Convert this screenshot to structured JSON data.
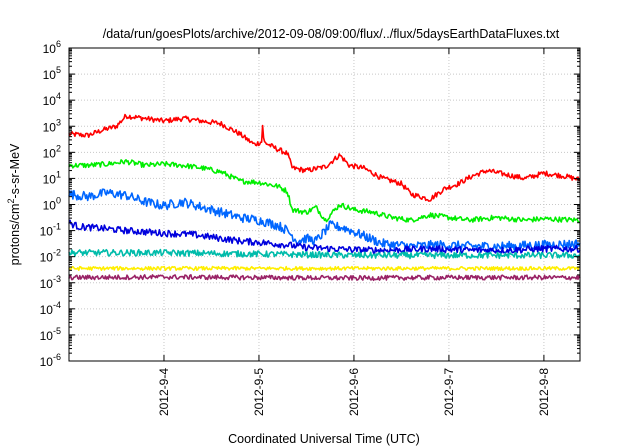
{
  "chart_data": {
    "type": "line",
    "title": "/data/run/goesPlots/archive/2012-09-08/09:00/flux/../flux/5daysEarthDataFluxes.txt",
    "xlabel": "Coordinated Universal Time (UTC)",
    "ylabel_prefix": "protons/cm",
    "ylabel_sup": "2",
    "ylabel_suffix": "-s-sr-MeV",
    "yscale": "log",
    "ylim_exp": [
      -6,
      6
    ],
    "y_ticks": [
      {
        "base": "10",
        "exp": "-6",
        "value": -6
      },
      {
        "base": "10",
        "exp": "-5",
        "value": -5
      },
      {
        "base": "10",
        "exp": "-4",
        "value": -4
      },
      {
        "base": "10",
        "exp": "-3",
        "value": -3
      },
      {
        "base": "10",
        "exp": "-2",
        "value": -2
      },
      {
        "base": "10",
        "exp": "-1",
        "value": -1
      },
      {
        "base": "10",
        "exp": "0",
        "value": 0
      },
      {
        "base": "10",
        "exp": "1",
        "value": 1
      },
      {
        "base": "10",
        "exp": "2",
        "value": 2
      },
      {
        "base": "10",
        "exp": "3",
        "value": 3
      },
      {
        "base": "10",
        "exp": "4",
        "value": 4
      },
      {
        "base": "10",
        "exp": "5",
        "value": 5
      },
      {
        "base": "10",
        "exp": "6",
        "value": 6
      }
    ],
    "xlim_days": [
      3.0,
      8.38
    ],
    "x_ticks": [
      {
        "label": "2012-9-4",
        "day": 4
      },
      {
        "label": "2012-9-5",
        "day": 5
      },
      {
        "label": "2012-9-6",
        "day": 6
      },
      {
        "label": "2012-9-7",
        "day": 7
      },
      {
        "label": "2012-9-8",
        "day": 8
      }
    ],
    "grid": true,
    "legend": "none",
    "series": [
      {
        "color": "#ff0000",
        "noise": 0.1,
        "points": [
          [
            3.0,
            2.7
          ],
          [
            3.2,
            2.65
          ],
          [
            3.35,
            2.85
          ],
          [
            3.5,
            3.0
          ],
          [
            3.6,
            3.4
          ],
          [
            3.8,
            3.3
          ],
          [
            4.0,
            3.2
          ],
          [
            4.2,
            3.3
          ],
          [
            4.4,
            3.2
          ],
          [
            4.6,
            3.1
          ],
          [
            4.8,
            2.7
          ],
          [
            4.95,
            2.3
          ],
          [
            5.03,
            2.4
          ],
          [
            5.04,
            3.2
          ],
          [
            5.05,
            2.4
          ],
          [
            5.15,
            2.2
          ],
          [
            5.3,
            1.95
          ],
          [
            5.35,
            1.4
          ],
          [
            5.5,
            1.3
          ],
          [
            5.7,
            1.45
          ],
          [
            5.85,
            1.9
          ],
          [
            5.95,
            1.5
          ],
          [
            6.1,
            1.4
          ],
          [
            6.3,
            1.0
          ],
          [
            6.5,
            0.8
          ],
          [
            6.6,
            0.4
          ],
          [
            6.8,
            0.2
          ],
          [
            6.95,
            0.6
          ],
          [
            7.1,
            0.8
          ],
          [
            7.25,
            1.1
          ],
          [
            7.4,
            1.3
          ],
          [
            7.6,
            1.15
          ],
          [
            7.8,
            1.0
          ],
          [
            8.0,
            1.2
          ],
          [
            8.2,
            1.1
          ],
          [
            8.38,
            0.95
          ]
        ]
      },
      {
        "color": "#00ee00",
        "noise": 0.1,
        "points": [
          [
            3.0,
            1.5
          ],
          [
            3.2,
            1.5
          ],
          [
            3.4,
            1.55
          ],
          [
            3.6,
            1.65
          ],
          [
            3.8,
            1.5
          ],
          [
            4.0,
            1.55
          ],
          [
            4.2,
            1.5
          ],
          [
            4.4,
            1.4
          ],
          [
            4.6,
            1.25
          ],
          [
            4.8,
            0.9
          ],
          [
            5.0,
            0.85
          ],
          [
            5.2,
            0.7
          ],
          [
            5.3,
            0.5
          ],
          [
            5.35,
            -0.2
          ],
          [
            5.5,
            -0.3
          ],
          [
            5.6,
            -0.1
          ],
          [
            5.7,
            -0.6
          ],
          [
            5.85,
            0.0
          ],
          [
            6.0,
            -0.2
          ],
          [
            6.2,
            -0.3
          ],
          [
            6.4,
            -0.5
          ],
          [
            6.6,
            -0.6
          ],
          [
            6.8,
            -0.4
          ],
          [
            7.0,
            -0.5
          ],
          [
            7.2,
            -0.6
          ],
          [
            7.5,
            -0.5
          ],
          [
            7.8,
            -0.6
          ],
          [
            8.0,
            -0.55
          ],
          [
            8.38,
            -0.6
          ]
        ]
      },
      {
        "color": "#0066ff",
        "noise": 0.18,
        "points": [
          [
            3.0,
            0.4
          ],
          [
            3.2,
            0.3
          ],
          [
            3.4,
            0.45
          ],
          [
            3.6,
            0.35
          ],
          [
            3.8,
            0.1
          ],
          [
            4.0,
            -0.05
          ],
          [
            4.2,
            0.1
          ],
          [
            4.4,
            -0.1
          ],
          [
            4.6,
            -0.3
          ],
          [
            4.8,
            -0.5
          ],
          [
            5.0,
            -0.6
          ],
          [
            5.2,
            -0.8
          ],
          [
            5.3,
            -1.0
          ],
          [
            5.4,
            -1.4
          ],
          [
            5.5,
            -1.3
          ],
          [
            5.6,
            -1.4
          ],
          [
            5.75,
            -0.8
          ],
          [
            5.9,
            -0.9
          ],
          [
            6.1,
            -1.2
          ],
          [
            6.3,
            -1.5
          ],
          [
            6.6,
            -1.6
          ],
          [
            6.9,
            -1.55
          ],
          [
            7.2,
            -1.6
          ],
          [
            7.6,
            -1.6
          ],
          [
            8.0,
            -1.55
          ],
          [
            8.38,
            -1.5
          ]
        ]
      },
      {
        "color": "#0000dd",
        "noise": 0.13,
        "points": [
          [
            3.0,
            -0.7
          ],
          [
            3.1,
            -0.85
          ],
          [
            3.3,
            -0.9
          ],
          [
            3.6,
            -1.0
          ],
          [
            3.8,
            -1.05
          ],
          [
            4.0,
            -1.1
          ],
          [
            4.3,
            -1.15
          ],
          [
            4.6,
            -1.3
          ],
          [
            4.8,
            -1.4
          ],
          [
            5.0,
            -1.45
          ],
          [
            5.3,
            -1.55
          ],
          [
            5.5,
            -1.65
          ],
          [
            5.8,
            -1.7
          ],
          [
            6.1,
            -1.75
          ],
          [
            6.4,
            -1.75
          ],
          [
            6.8,
            -1.7
          ],
          [
            7.2,
            -1.75
          ],
          [
            7.6,
            -1.75
          ],
          [
            8.0,
            -1.7
          ],
          [
            8.38,
            -1.7
          ]
        ]
      },
      {
        "color": "#00bbaa",
        "noise": 0.12,
        "points": [
          [
            3.0,
            -1.85
          ],
          [
            4.0,
            -1.85
          ],
          [
            5.0,
            -1.9
          ],
          [
            6.0,
            -1.95
          ],
          [
            7.0,
            -1.95
          ],
          [
            8.38,
            -1.95
          ]
        ]
      },
      {
        "color": "#ffee00",
        "noise": 0.07,
        "points": [
          [
            3.0,
            -2.45
          ],
          [
            4.0,
            -2.45
          ],
          [
            5.0,
            -2.45
          ],
          [
            6.0,
            -2.45
          ],
          [
            7.0,
            -2.45
          ],
          [
            8.38,
            -2.45
          ]
        ]
      },
      {
        "color": "#992266",
        "noise": 0.09,
        "points": [
          [
            3.0,
            -2.8
          ],
          [
            4.0,
            -2.78
          ],
          [
            5.0,
            -2.8
          ],
          [
            6.0,
            -2.82
          ],
          [
            7.0,
            -2.8
          ],
          [
            8.38,
            -2.8
          ]
        ]
      }
    ]
  }
}
